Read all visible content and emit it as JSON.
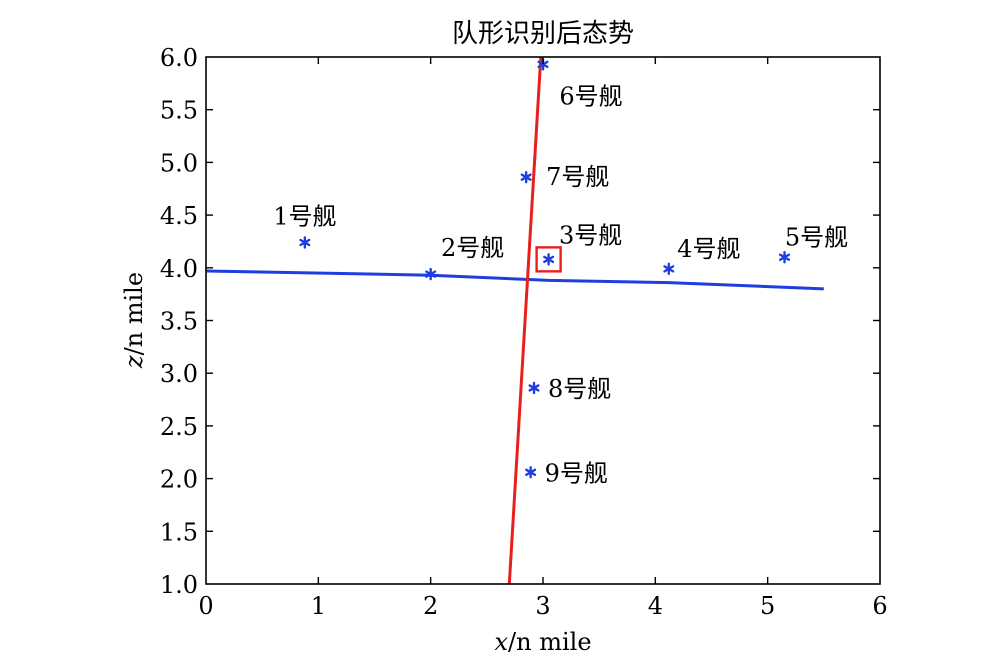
{
  "chart_data": {
    "type": "scatter",
    "title": "队形识别后态势",
    "xlabel_var": "x",
    "xlabel_unit": "/n mile",
    "ylabel_var": "z",
    "ylabel_unit": "/n mile",
    "xlim": [
      0,
      6
    ],
    "ylim": [
      1.0,
      6.0
    ],
    "xticks": [
      "0",
      "1",
      "2",
      "3",
      "4",
      "5",
      "6"
    ],
    "yticks": [
      "1.0",
      "1.5",
      "2.0",
      "2.5",
      "3.0",
      "3.5",
      "4.0",
      "4.5",
      "5.0",
      "5.5",
      "6.0"
    ],
    "grid": false,
    "marker_color": "#1f3de0",
    "points": [
      {
        "label": "1号舰",
        "x": 0.88,
        "y": 4.24
      },
      {
        "label": "2号舰",
        "x": 2.0,
        "y": 3.94
      },
      {
        "label": "3号舰",
        "x": 3.05,
        "y": 4.08
      },
      {
        "label": "4号舰",
        "x": 4.12,
        "y": 3.99
      },
      {
        "label": "5号舰",
        "x": 5.15,
        "y": 4.1
      },
      {
        "label": "6号舰",
        "x": 3.0,
        "y": 5.93
      },
      {
        "label": "7号舰",
        "x": 2.85,
        "y": 4.86
      },
      {
        "label": "8号舰",
        "x": 2.92,
        "y": 2.86
      },
      {
        "label": "9号舰",
        "x": 2.89,
        "y": 2.06
      }
    ],
    "lines": [
      {
        "color": "#1f3de0",
        "x": [
          0,
          2.0,
          3.05,
          4.12,
          5.5
        ],
        "y": [
          3.97,
          3.93,
          3.88,
          3.86,
          3.8
        ]
      },
      {
        "color": "#e8201c",
        "x": [
          2.7,
          2.98
        ],
        "y": [
          1.0,
          6.0
        ]
      }
    ],
    "highlight": {
      "label": "3号舰",
      "color": "#e8201c"
    }
  }
}
